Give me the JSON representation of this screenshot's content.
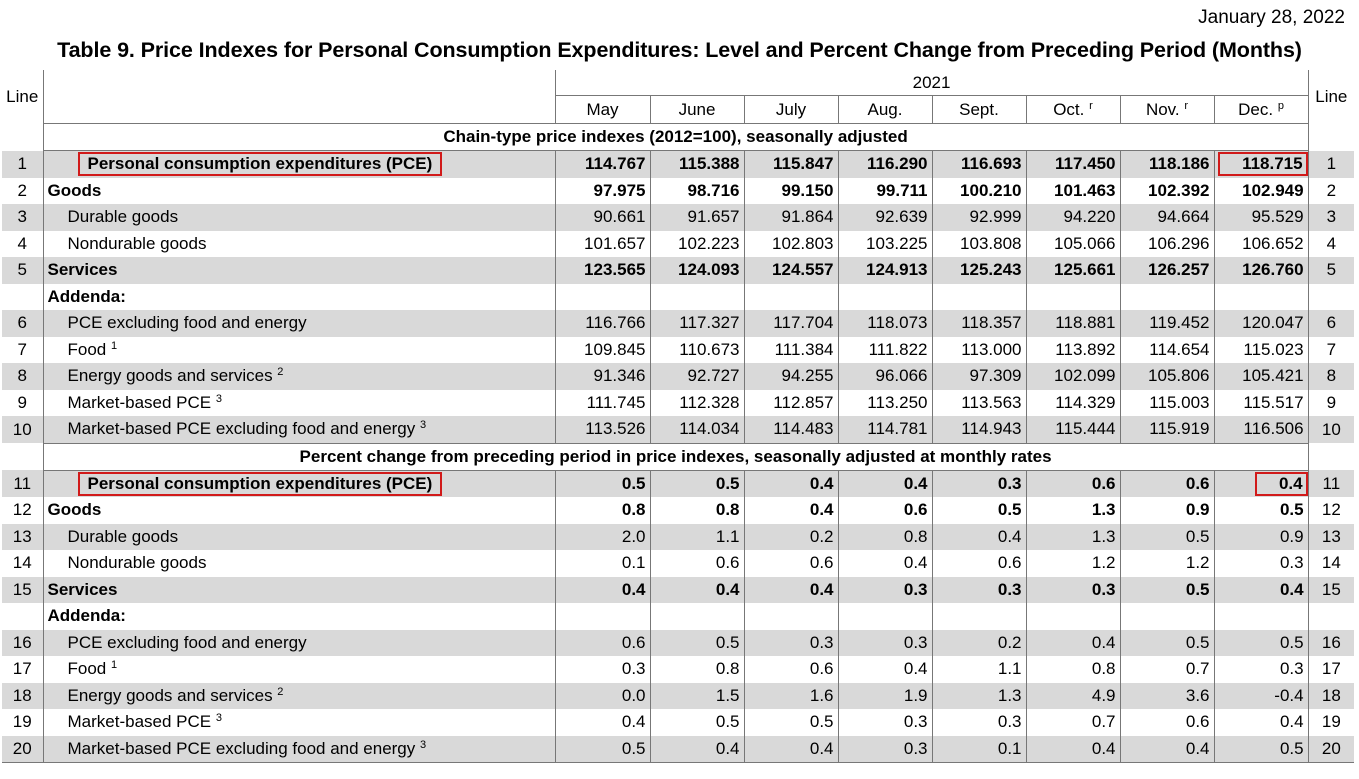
{
  "date": "January 28, 2022",
  "title": "Table 9. Price Indexes for Personal Consumption Expenditures: Level and Percent Change from Preceding Period (Months)",
  "header": {
    "line_label": "Line",
    "year": "2021",
    "months": [
      {
        "label": "May",
        "sup": ""
      },
      {
        "label": "June",
        "sup": ""
      },
      {
        "label": "July",
        "sup": ""
      },
      {
        "label": "Aug.",
        "sup": ""
      },
      {
        "label": "Sept.",
        "sup": ""
      },
      {
        "label": "Oct.",
        "sup": "r"
      },
      {
        "label": "Nov.",
        "sup": "r"
      },
      {
        "label": "Dec.",
        "sup": "p"
      }
    ]
  },
  "sections": [
    {
      "title": "Chain-type price indexes (2012=100), seasonally adjusted",
      "rows": [
        {
          "line": "1",
          "label": "Personal consumption expenditures (PCE)",
          "sup": "",
          "values": [
            "114.767",
            "115.388",
            "115.847",
            "116.290",
            "116.693",
            "117.450",
            "118.186",
            "118.715"
          ]
        },
        {
          "line": "2",
          "label": "Goods",
          "sup": "",
          "values": [
            "97.975",
            "98.716",
            "99.150",
            "99.711",
            "100.210",
            "101.463",
            "102.392",
            "102.949"
          ]
        },
        {
          "line": "3",
          "label": "Durable goods",
          "sup": "",
          "values": [
            "90.661",
            "91.657",
            "91.864",
            "92.639",
            "92.999",
            "94.220",
            "94.664",
            "95.529"
          ]
        },
        {
          "line": "4",
          "label": "Nondurable goods",
          "sup": "",
          "values": [
            "101.657",
            "102.223",
            "102.803",
            "103.225",
            "103.808",
            "105.066",
            "106.296",
            "106.652"
          ]
        },
        {
          "line": "5",
          "label": "Services",
          "sup": "",
          "values": [
            "123.565",
            "124.093",
            "124.557",
            "124.913",
            "125.243",
            "125.661",
            "126.257",
            "126.760"
          ]
        },
        {
          "line": "",
          "label": "Addenda:",
          "sup": "",
          "values": [
            "",
            "",
            "",
            "",
            "",
            "",
            "",
            ""
          ]
        },
        {
          "line": "6",
          "label": "PCE excluding food and energy",
          "sup": "",
          "values": [
            "116.766",
            "117.327",
            "117.704",
            "118.073",
            "118.357",
            "118.881",
            "119.452",
            "120.047"
          ]
        },
        {
          "line": "7",
          "label": "Food",
          "sup": "1",
          "values": [
            "109.845",
            "110.673",
            "111.384",
            "111.822",
            "113.000",
            "113.892",
            "114.654",
            "115.023"
          ]
        },
        {
          "line": "8",
          "label": "Energy goods and services",
          "sup": "2",
          "values": [
            "91.346",
            "92.727",
            "94.255",
            "96.066",
            "97.309",
            "102.099",
            "105.806",
            "105.421"
          ]
        },
        {
          "line": "9",
          "label": "Market-based PCE",
          "sup": "3",
          "values": [
            "111.745",
            "112.328",
            "112.857",
            "113.250",
            "113.563",
            "114.329",
            "115.003",
            "115.517"
          ]
        },
        {
          "line": "10",
          "label": "Market-based PCE excluding food and energy",
          "sup": "3",
          "values": [
            "113.526",
            "114.034",
            "114.483",
            "114.781",
            "114.943",
            "115.444",
            "115.919",
            "116.506"
          ]
        }
      ]
    },
    {
      "title": "Percent change from preceding period in price indexes, seasonally adjusted at monthly rates",
      "rows": [
        {
          "line": "11",
          "label": "Personal consumption expenditures (PCE)",
          "sup": "",
          "values": [
            "0.5",
            "0.5",
            "0.4",
            "0.4",
            "0.3",
            "0.6",
            "0.6",
            "0.4"
          ]
        },
        {
          "line": "12",
          "label": "Goods",
          "sup": "",
          "values": [
            "0.8",
            "0.8",
            "0.4",
            "0.6",
            "0.5",
            "1.3",
            "0.9",
            "0.5"
          ]
        },
        {
          "line": "13",
          "label": "Durable goods",
          "sup": "",
          "values": [
            "2.0",
            "1.1",
            "0.2",
            "0.8",
            "0.4",
            "1.3",
            "0.5",
            "0.9"
          ]
        },
        {
          "line": "14",
          "label": "Nondurable goods",
          "sup": "",
          "values": [
            "0.1",
            "0.6",
            "0.6",
            "0.4",
            "0.6",
            "1.2",
            "1.2",
            "0.3"
          ]
        },
        {
          "line": "15",
          "label": "Services",
          "sup": "",
          "values": [
            "0.4",
            "0.4",
            "0.4",
            "0.3",
            "0.3",
            "0.3",
            "0.5",
            "0.4"
          ]
        },
        {
          "line": "",
          "label": "Addenda:",
          "sup": "",
          "values": [
            "",
            "",
            "",
            "",
            "",
            "",
            "",
            ""
          ]
        },
        {
          "line": "16",
          "label": "PCE excluding food and energy",
          "sup": "",
          "values": [
            "0.6",
            "0.5",
            "0.3",
            "0.3",
            "0.2",
            "0.4",
            "0.5",
            "0.5"
          ]
        },
        {
          "line": "17",
          "label": "Food",
          "sup": "1",
          "values": [
            "0.3",
            "0.8",
            "0.6",
            "0.4",
            "1.1",
            "0.8",
            "0.7",
            "0.3"
          ]
        },
        {
          "line": "18",
          "label": "Energy goods and services",
          "sup": "2",
          "values": [
            "0.0",
            "1.5",
            "1.6",
            "1.9",
            "1.3",
            "4.9",
            "3.6",
            "-0.4"
          ]
        },
        {
          "line": "19",
          "label": "Market-based PCE",
          "sup": "3",
          "values": [
            "0.4",
            "0.5",
            "0.5",
            "0.3",
            "0.3",
            "0.7",
            "0.6",
            "0.4"
          ]
        },
        {
          "line": "20",
          "label": "Market-based PCE excluding food and energy",
          "sup": "3",
          "values": [
            "0.5",
            "0.4",
            "0.4",
            "0.3",
            "0.1",
            "0.4",
            "0.4",
            "0.5"
          ]
        }
      ]
    }
  ]
}
